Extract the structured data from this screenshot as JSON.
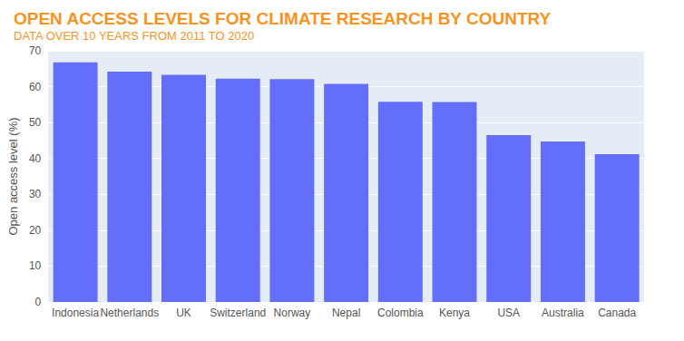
{
  "chart_data": {
    "type": "bar",
    "title": "OPEN ACCESS LEVELS FOR CLIMATE RESEARCH BY COUNTRY",
    "subtitle": "DATA OVER 10 YEARS FROM 2011 TO 2020",
    "y_label": "Open access level (%)",
    "categories": [
      "Indonesia",
      "Netherlands",
      "UK",
      "Switzerland",
      "Norway",
      "Nepal",
      "Colombia",
      "Kenya",
      "USA",
      "Australia",
      "Canada"
    ],
    "values": [
      66.8,
      64.2,
      63.3,
      62.2,
      62.1,
      60.8,
      55.8,
      55.7,
      46.5,
      44.7,
      41.2
    ],
    "color": "#636efa",
    "ylim": [
      0,
      70
    ],
    "yticks": [
      0,
      10,
      20,
      30,
      40,
      50,
      60,
      70
    ],
    "grid": true
  }
}
